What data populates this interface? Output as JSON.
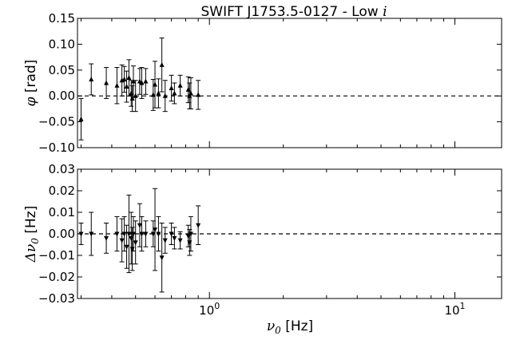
{
  "title": {
    "text": "SWIFT J1753.5-0127 - Low ",
    "symbol": "i"
  },
  "xlabel": {
    "symbol": "ν",
    "subscript": "0",
    "unit": " [Hz]"
  },
  "chart_data": [
    {
      "type": "scatter",
      "panel": "top",
      "marker": "triangle-up",
      "ylabel": {
        "symbol": "φ",
        "unit": " [rad]"
      },
      "xscale": "log",
      "xlim": [
        0.29,
        15.5
      ],
      "ylim": [
        -0.1,
        0.15
      ],
      "yticks": [
        "−0.10",
        "−0.05",
        "0.00",
        "0.05",
        "0.10",
        "0.15"
      ],
      "ytick_values": [
        -0.1,
        -0.05,
        0.0,
        0.05,
        0.1,
        0.15
      ],
      "reference_line": {
        "y": 0,
        "style": "dashed"
      },
      "series": [
        {
          "x": [
            0.3,
            0.33,
            0.38,
            0.42,
            0.44,
            0.45,
            0.46,
            0.47,
            0.48,
            0.485,
            0.49,
            0.5,
            0.52,
            0.53,
            0.55,
            0.59,
            0.6,
            0.62,
            0.64,
            0.66,
            0.7,
            0.72,
            0.76,
            0.82,
            0.83,
            0.84,
            0.9
          ],
          "y": [
            -0.045,
            0.032,
            0.025,
            0.02,
            0.03,
            0.032,
            0.018,
            0.035,
            0.005,
            -0.005,
            0.028,
            0.0,
            0.028,
            0.025,
            0.028,
            0.002,
            0.022,
            0.005,
            0.06,
            0.0,
            0.015,
            0.005,
            0.02,
            0.012,
            0.0,
            0.005,
            0.002
          ],
          "yerr": [
            0.04,
            0.03,
            0.03,
            0.035,
            0.03,
            0.025,
            0.03,
            0.035,
            0.025,
            0.025,
            0.03,
            0.03,
            0.025,
            0.03,
            0.025,
            0.03,
            0.045,
            0.028,
            0.052,
            0.03,
            0.025,
            0.02,
            0.02,
            0.025,
            0.025,
            0.03,
            0.028
          ]
        }
      ]
    },
    {
      "type": "scatter",
      "panel": "bottom",
      "marker": "triangle-down",
      "ylabel": {
        "symbol": "Δν",
        "subscript": "0",
        "unit": " [Hz]"
      },
      "xscale": "log",
      "xlim": [
        0.29,
        15.5
      ],
      "ylim": [
        -0.03,
        0.03
      ],
      "yticks": [
        "−0.03",
        "−0.02",
        "−0.01",
        "0.00",
        "0.01",
        "0.02",
        "0.03"
      ],
      "ytick_values": [
        -0.03,
        -0.02,
        -0.01,
        0.0,
        0.01,
        0.02,
        0.03
      ],
      "xticks": [
        "10",
        "10"
      ],
      "xtick_exponents": [
        "0",
        "1"
      ],
      "xtick_values": [
        1,
        10
      ],
      "reference_line": {
        "y": 0,
        "style": "dashed"
      },
      "series": [
        {
          "x": [
            0.3,
            0.33,
            0.38,
            0.42,
            0.44,
            0.45,
            0.46,
            0.47,
            0.48,
            0.485,
            0.49,
            0.5,
            0.52,
            0.53,
            0.55,
            0.59,
            0.6,
            0.62,
            0.64,
            0.66,
            0.7,
            0.72,
            0.76,
            0.82,
            0.83,
            0.84,
            0.9
          ],
          "y": [
            0.0,
            0.0,
            -0.002,
            0.0,
            -0.003,
            0.0,
            -0.006,
            0.0,
            -0.002,
            -0.007,
            0.0,
            -0.004,
            0.004,
            0.0,
            0.0,
            0.0,
            0.002,
            0.0,
            -0.011,
            -0.003,
            0.0,
            -0.002,
            -0.003,
            -0.001,
            -0.004,
            0.0,
            0.004
          ],
          "yerr": [
            0.005,
            0.01,
            0.007,
            0.008,
            0.01,
            0.008,
            0.01,
            0.018,
            0.012,
            0.01,
            0.008,
            0.01,
            0.01,
            0.008,
            0.006,
            0.006,
            0.019,
            0.008,
            0.016,
            0.006,
            0.005,
            0.005,
            0.004,
            0.005,
            0.006,
            0.008,
            0.009
          ]
        }
      ]
    }
  ]
}
